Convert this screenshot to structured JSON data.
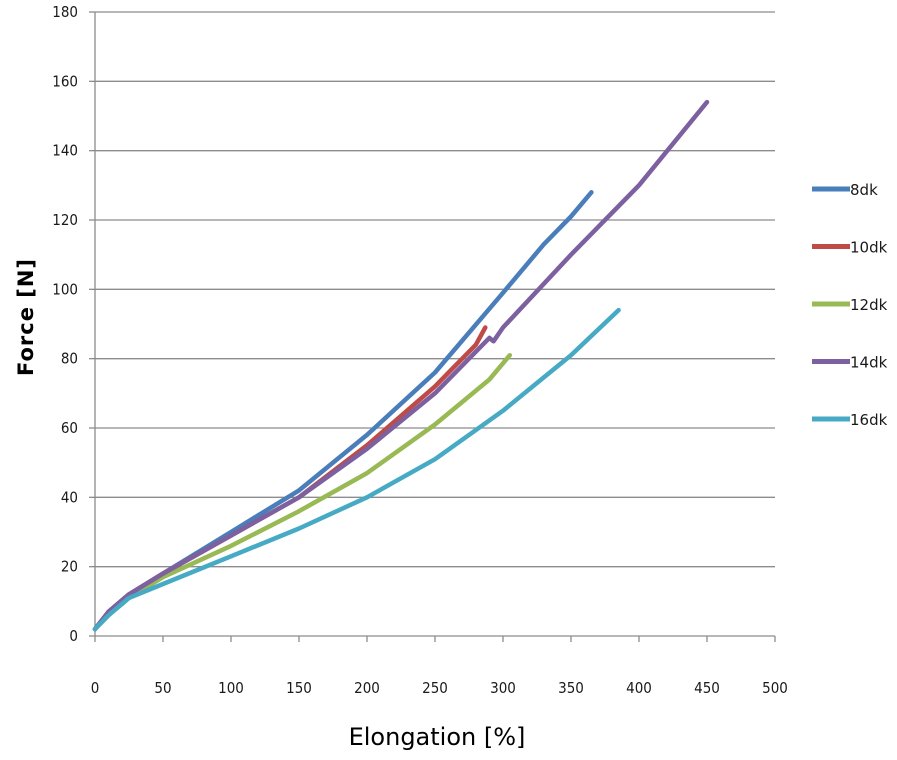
{
  "chart_data": {
    "type": "line",
    "title": "",
    "xlabel": "Elongation [%]",
    "ylabel": "Force [N]",
    "xlim": [
      0,
      500
    ],
    "ylim": [
      0,
      180
    ],
    "xticks": [
      0,
      50,
      100,
      150,
      200,
      250,
      300,
      350,
      400,
      450,
      500
    ],
    "yticks": [
      0,
      20,
      40,
      60,
      80,
      100,
      120,
      140,
      160,
      180
    ],
    "grid": "horizontal",
    "legend_position": "right",
    "series": [
      {
        "name": "8dk",
        "color": "#4A7EBB",
        "x": [
          0,
          10,
          25,
          50,
          100,
          150,
          200,
          250,
          300,
          330,
          350,
          365
        ],
        "y": [
          2,
          7,
          12,
          18,
          30,
          42,
          58,
          76,
          99,
          113,
          121,
          128
        ]
      },
      {
        "name": "10dk",
        "color": "#BE4B48",
        "x": [
          0,
          10,
          25,
          50,
          100,
          150,
          200,
          250,
          280,
          287
        ],
        "y": [
          2,
          7,
          12,
          18,
          29,
          40,
          55,
          72,
          84,
          89
        ]
      },
      {
        "name": "12dk",
        "color": "#98B954",
        "x": [
          0,
          10,
          25,
          50,
          100,
          150,
          200,
          250,
          290,
          305
        ],
        "y": [
          2,
          6,
          11,
          17,
          26,
          36,
          47,
          61,
          74,
          81
        ]
      },
      {
        "name": "14dk",
        "color": "#7D60A0",
        "x": [
          0,
          10,
          25,
          50,
          100,
          150,
          200,
          250,
          285,
          290,
          293,
          300,
          350,
          400,
          450
        ],
        "y": [
          2,
          7,
          12,
          18,
          29,
          40,
          54,
          70,
          84,
          86,
          85,
          89,
          110,
          130,
          154
        ]
      },
      {
        "name": "16dk",
        "color": "#46AAC5",
        "x": [
          0,
          10,
          25,
          50,
          100,
          150,
          200,
          250,
          300,
          350,
          385
        ],
        "y": [
          2,
          6,
          11,
          15,
          23,
          31,
          40,
          51,
          65,
          81,
          94
        ]
      }
    ]
  }
}
